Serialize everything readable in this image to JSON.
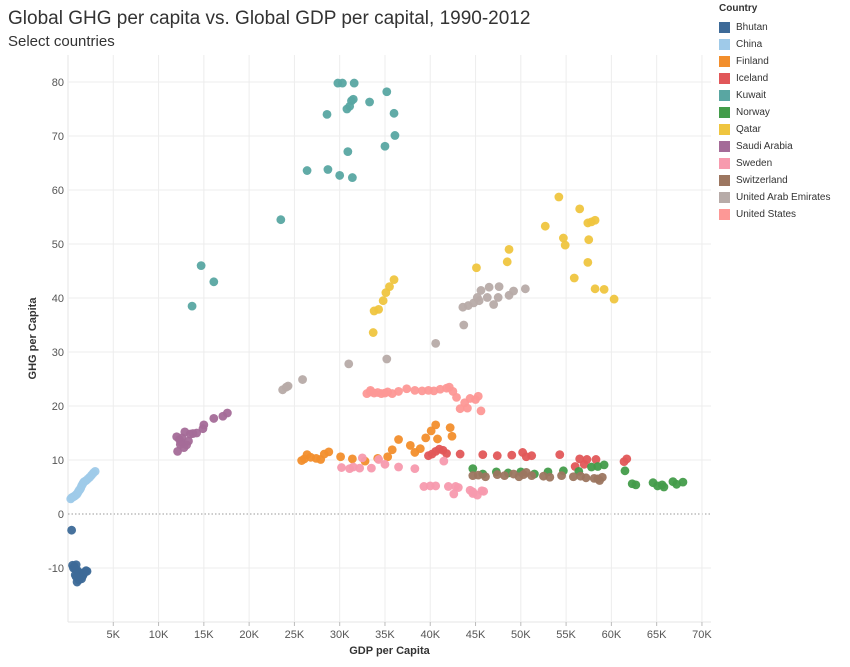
{
  "title": "Global GHG per capita vs. Global GDP per capital, 1990-2012",
  "subtitle": "Select countries",
  "chart_data": {
    "type": "scatter",
    "xlabel": "GDP per Capita",
    "ylabel": "GHG per Capita",
    "xlim": [
      0,
      71000
    ],
    "ylim": [
      -20,
      85
    ],
    "xticks": [
      5000,
      10000,
      15000,
      20000,
      25000,
      30000,
      35000,
      40000,
      45000,
      50000,
      55000,
      60000,
      65000,
      70000
    ],
    "xtick_labels": [
      "5K",
      "10K",
      "15K",
      "20K",
      "25K",
      "30K",
      "35K",
      "40K",
      "45K",
      "50K",
      "55K",
      "60K",
      "65K",
      "70K"
    ],
    "yticks": [
      -10,
      0,
      10,
      20,
      30,
      40,
      50,
      60,
      70,
      80
    ],
    "ytick_labels": [
      "-10",
      "0",
      "10",
      "20",
      "30",
      "40",
      "50",
      "60",
      "70",
      "80"
    ],
    "grid": true,
    "zero_line": true,
    "legend_title": "Country",
    "legend_position": "top-right",
    "series": [
      {
        "name": "Bhutan",
        "color": "#3d6a98",
        "points": [
          [
            400,
            -3
          ],
          [
            500,
            -9.5
          ],
          [
            600,
            -10
          ],
          [
            700,
            -9.7
          ],
          [
            800,
            -10.2
          ],
          [
            900,
            -9.4
          ],
          [
            1000,
            -10.4
          ],
          [
            1100,
            -10.8
          ],
          [
            1200,
            -11.2
          ],
          [
            1300,
            -11.4
          ],
          [
            1400,
            -10.9
          ],
          [
            1500,
            -12
          ],
          [
            1600,
            -11.5
          ],
          [
            1700,
            -11.2
          ],
          [
            1800,
            -10.9
          ],
          [
            1900,
            -10.7
          ],
          [
            2000,
            -10.5
          ],
          [
            2100,
            -10.6
          ],
          [
            1000,
            -12.6
          ],
          [
            1200,
            -12.2
          ],
          [
            800,
            -11.3
          ],
          [
            900,
            -11.6
          ]
        ]
      },
      {
        "name": "China",
        "color": "#9fcae9",
        "points": [
          [
            300,
            2.8
          ],
          [
            400,
            3
          ],
          [
            500,
            3.1
          ],
          [
            600,
            3.2
          ],
          [
            700,
            3.3
          ],
          [
            800,
            3.4
          ],
          [
            900,
            3.6
          ],
          [
            1000,
            3.7
          ],
          [
            1100,
            4
          ],
          [
            1200,
            4.3
          ],
          [
            1300,
            4.5
          ],
          [
            1400,
            4.8
          ],
          [
            1500,
            5.2
          ],
          [
            1600,
            5.5
          ],
          [
            1700,
            5.8
          ],
          [
            1800,
            6
          ],
          [
            2000,
            6.2
          ],
          [
            2200,
            6.5
          ],
          [
            2400,
            6.8
          ],
          [
            2600,
            7.2
          ],
          [
            2800,
            7.6
          ],
          [
            3000,
            7.9
          ]
        ]
      },
      {
        "name": "Finland",
        "color": "#f28e2c",
        "points": [
          [
            25800,
            9.9
          ],
          [
            26100,
            10.2
          ],
          [
            26400,
            11
          ],
          [
            26800,
            10.5
          ],
          [
            27400,
            10.3
          ],
          [
            27900,
            10.1
          ],
          [
            28300,
            11.1
          ],
          [
            28800,
            11.5
          ],
          [
            30100,
            10.6
          ],
          [
            31400,
            10.2
          ],
          [
            32800,
            9.8
          ],
          [
            34200,
            10.3
          ],
          [
            35300,
            10.6
          ],
          [
            35800,
            11.9
          ],
          [
            36500,
            13.8
          ],
          [
            37800,
            12.7
          ],
          [
            38300,
            11.4
          ],
          [
            38900,
            12.1
          ],
          [
            39500,
            14.1
          ],
          [
            40100,
            15.4
          ],
          [
            40600,
            16.5
          ],
          [
            40800,
            13.9
          ],
          [
            42200,
            16
          ],
          [
            42400,
            14.4
          ]
        ]
      },
      {
        "name": "Iceland",
        "color": "#e15759",
        "points": [
          [
            39800,
            10.8
          ],
          [
            40200,
            11.1
          ],
          [
            40600,
            11.6
          ],
          [
            41000,
            12
          ],
          [
            41400,
            11.8
          ],
          [
            41800,
            11.2
          ],
          [
            43300,
            11.1
          ],
          [
            45800,
            11
          ],
          [
            47400,
            10.8
          ],
          [
            49000,
            10.9
          ],
          [
            50200,
            11.4
          ],
          [
            50600,
            10.6
          ],
          [
            51200,
            10.8
          ],
          [
            54300,
            11
          ],
          [
            56500,
            10.2
          ],
          [
            57300,
            10.1
          ],
          [
            58300,
            10.1
          ],
          [
            61400,
            9.7
          ],
          [
            61700,
            10.2
          ],
          [
            56000,
            8.8
          ],
          [
            57000,
            9.2
          ]
        ]
      },
      {
        "name": "Kuwait",
        "color": "#59a6a2",
        "points": [
          [
            13700,
            38.5
          ],
          [
            14700,
            46
          ],
          [
            16100,
            43
          ],
          [
            23500,
            54.5
          ],
          [
            26400,
            63.6
          ],
          [
            28700,
            63.8
          ],
          [
            30000,
            62.7
          ],
          [
            31400,
            62.3
          ],
          [
            28600,
            74
          ],
          [
            30800,
            75
          ],
          [
            31100,
            75.5
          ],
          [
            31300,
            76.5
          ],
          [
            31500,
            76.8
          ],
          [
            29800,
            79.8
          ],
          [
            30300,
            79.8
          ],
          [
            31600,
            79.8
          ],
          [
            33300,
            76.3
          ],
          [
            35200,
            78.2
          ],
          [
            36000,
            74.2
          ],
          [
            35000,
            68.1
          ],
          [
            36100,
            70.1
          ],
          [
            30900,
            67.1
          ]
        ]
      },
      {
        "name": "Norway",
        "color": "#439c4a",
        "points": [
          [
            44700,
            8.4
          ],
          [
            45800,
            7.4
          ],
          [
            47300,
            7.8
          ],
          [
            48600,
            7.6
          ],
          [
            50000,
            7.8
          ],
          [
            51500,
            7.4
          ],
          [
            53000,
            7.8
          ],
          [
            54700,
            8
          ],
          [
            56400,
            7.9
          ],
          [
            57800,
            8.7
          ],
          [
            58500,
            8.8
          ],
          [
            59200,
            9.1
          ],
          [
            62300,
            5.6
          ],
          [
            62700,
            5.4
          ],
          [
            64600,
            5.8
          ],
          [
            65100,
            5.2
          ],
          [
            65600,
            5.4
          ],
          [
            66800,
            6
          ],
          [
            67900,
            5.9
          ],
          [
            65800,
            5
          ],
          [
            67200,
            5.5
          ],
          [
            61500,
            8
          ]
        ]
      },
      {
        "name": "Qatar",
        "color": "#efc53f",
        "points": [
          [
            33700,
            33.6
          ],
          [
            33800,
            37.6
          ],
          [
            34300,
            37.9
          ],
          [
            34800,
            39.5
          ],
          [
            35100,
            41
          ],
          [
            35500,
            42.1
          ],
          [
            36000,
            43.4
          ],
          [
            45100,
            45.6
          ],
          [
            48500,
            46.7
          ],
          [
            48700,
            49
          ],
          [
            52700,
            53.3
          ],
          [
            54200,
            58.7
          ],
          [
            54700,
            51.1
          ],
          [
            54900,
            49.8
          ],
          [
            56500,
            56.5
          ],
          [
            57400,
            53.9
          ],
          [
            57800,
            54.1
          ],
          [
            58200,
            54.4
          ],
          [
            57500,
            50.8
          ],
          [
            57400,
            46.6
          ],
          [
            55900,
            43.7
          ],
          [
            58200,
            41.7
          ],
          [
            59200,
            41.6
          ],
          [
            60300,
            39.8
          ]
        ]
      },
      {
        "name": "Saudi Arabia",
        "color": "#a46b98",
        "points": [
          [
            12100,
            11.6
          ],
          [
            12300,
            13.8
          ],
          [
            12500,
            13.3
          ],
          [
            12600,
            14.1
          ],
          [
            12800,
            12.3
          ],
          [
            12900,
            15.2
          ],
          [
            13100,
            12.8
          ],
          [
            13300,
            13.5
          ],
          [
            13500,
            14.8
          ],
          [
            13800,
            14.9
          ],
          [
            14200,
            15
          ],
          [
            14900,
            15.8
          ],
          [
            15000,
            16.5
          ],
          [
            16100,
            17.7
          ],
          [
            17100,
            18.1
          ],
          [
            17600,
            18.7
          ],
          [
            12000,
            14.3
          ],
          [
            12400,
            12.9
          ]
        ]
      },
      {
        "name": "Sweden",
        "color": "#f79aae",
        "points": [
          [
            30200,
            8.6
          ],
          [
            31100,
            8.4
          ],
          [
            31500,
            8.7
          ],
          [
            32200,
            8.5
          ],
          [
            33500,
            8.5
          ],
          [
            35000,
            9.2
          ],
          [
            36500,
            8.7
          ],
          [
            38300,
            8.4
          ],
          [
            39300,
            5.1
          ],
          [
            40000,
            5.2
          ],
          [
            40600,
            5.2
          ],
          [
            42000,
            5.1
          ],
          [
            42800,
            5.1
          ],
          [
            42600,
            3.7
          ],
          [
            43100,
            4.9
          ],
          [
            44400,
            4.4
          ],
          [
            44700,
            4.1
          ],
          [
            45200,
            3.5
          ],
          [
            45700,
            4.3
          ],
          [
            45900,
            4.2
          ],
          [
            44700,
            3.8
          ],
          [
            41500,
            9.8
          ],
          [
            32500,
            10.4
          ],
          [
            34300,
            10.1
          ]
        ]
      },
      {
        "name": "Switzerland",
        "color": "#9c7660",
        "points": [
          [
            44700,
            7.1
          ],
          [
            45300,
            7.2
          ],
          [
            46100,
            6.9
          ],
          [
            47400,
            7.3
          ],
          [
            48200,
            7.1
          ],
          [
            49200,
            7.4
          ],
          [
            50300,
            7.3
          ],
          [
            51200,
            7.1
          ],
          [
            52500,
            7
          ],
          [
            53200,
            6.8
          ],
          [
            54500,
            7.1
          ],
          [
            55800,
            6.9
          ],
          [
            56600,
            7
          ],
          [
            57200,
            6.7
          ],
          [
            58100,
            6.6
          ],
          [
            58500,
            6.5
          ],
          [
            59000,
            6.8
          ],
          [
            58700,
            6.2
          ],
          [
            50600,
            7.7
          ],
          [
            49800,
            6.9
          ]
        ]
      },
      {
        "name": "United Arab Emirates",
        "color": "#b7aba8",
        "points": [
          [
            23700,
            23
          ],
          [
            24100,
            23.5
          ],
          [
            24300,
            23.7
          ],
          [
            25900,
            24.9
          ],
          [
            31000,
            27.8
          ],
          [
            35200,
            28.7
          ],
          [
            40600,
            31.6
          ],
          [
            43700,
            35
          ],
          [
            43600,
            38.3
          ],
          [
            44200,
            38.6
          ],
          [
            44800,
            39.1
          ],
          [
            45200,
            40.1
          ],
          [
            45400,
            39.5
          ],
          [
            45600,
            41.4
          ],
          [
            46300,
            40.1
          ],
          [
            46500,
            42
          ],
          [
            47000,
            38.8
          ],
          [
            47500,
            40.1
          ],
          [
            47600,
            42.1
          ],
          [
            48700,
            40.5
          ],
          [
            49200,
            41.3
          ],
          [
            50500,
            41.7
          ]
        ]
      },
      {
        "name": "United States",
        "color": "#fd9896",
        "points": [
          [
            33000,
            22.3
          ],
          [
            33400,
            22.6
          ],
          [
            33800,
            22.4
          ],
          [
            34200,
            22.5
          ],
          [
            34600,
            22.3
          ],
          [
            35000,
            22.4
          ],
          [
            35300,
            22.6
          ],
          [
            35800,
            22.3
          ],
          [
            36500,
            22.7
          ],
          [
            37400,
            23.2
          ],
          [
            38300,
            22.9
          ],
          [
            39100,
            22.8
          ],
          [
            39800,
            22.9
          ],
          [
            40400,
            22.8
          ],
          [
            41100,
            23.1
          ],
          [
            41800,
            23.3
          ],
          [
            42100,
            23.5
          ],
          [
            42500,
            22.7
          ],
          [
            42900,
            21.6
          ],
          [
            43800,
            20.6
          ],
          [
            43300,
            19.5
          ],
          [
            44400,
            21.4
          ],
          [
            45000,
            21.2
          ],
          [
            45300,
            21.8
          ],
          [
            45600,
            19.1
          ],
          [
            44100,
            19.6
          ],
          [
            33400,
            22.9
          ]
        ]
      }
    ]
  }
}
